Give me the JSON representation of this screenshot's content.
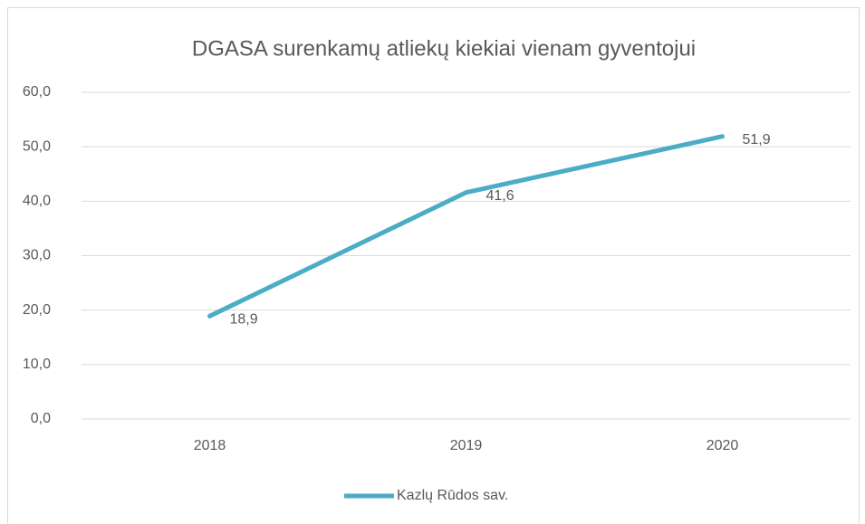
{
  "chart_data": {
    "type": "line",
    "title": "DGASA surenkamų atliekų kiekiai vienam gyventojui",
    "categories": [
      "2018",
      "2019",
      "2020"
    ],
    "series": [
      {
        "name": "Kazlų Rūdos sav.",
        "color": "#4bacc6",
        "values": [
          18.9,
          41.6,
          51.9
        ],
        "value_labels": [
          "18,9",
          "41,6",
          "51,9"
        ]
      }
    ],
    "ylim": [
      0,
      60
    ],
    "yticks": [
      {
        "value": 0,
        "label": "0,0"
      },
      {
        "value": 10,
        "label": "10,0"
      },
      {
        "value": 20,
        "label": "20,0"
      },
      {
        "value": 30,
        "label": "30,0"
      },
      {
        "value": 40,
        "label": "40,0"
      },
      {
        "value": 50,
        "label": "50,0"
      },
      {
        "value": 60,
        "label": "60,0"
      }
    ],
    "grid": true,
    "legend": "bottom"
  }
}
